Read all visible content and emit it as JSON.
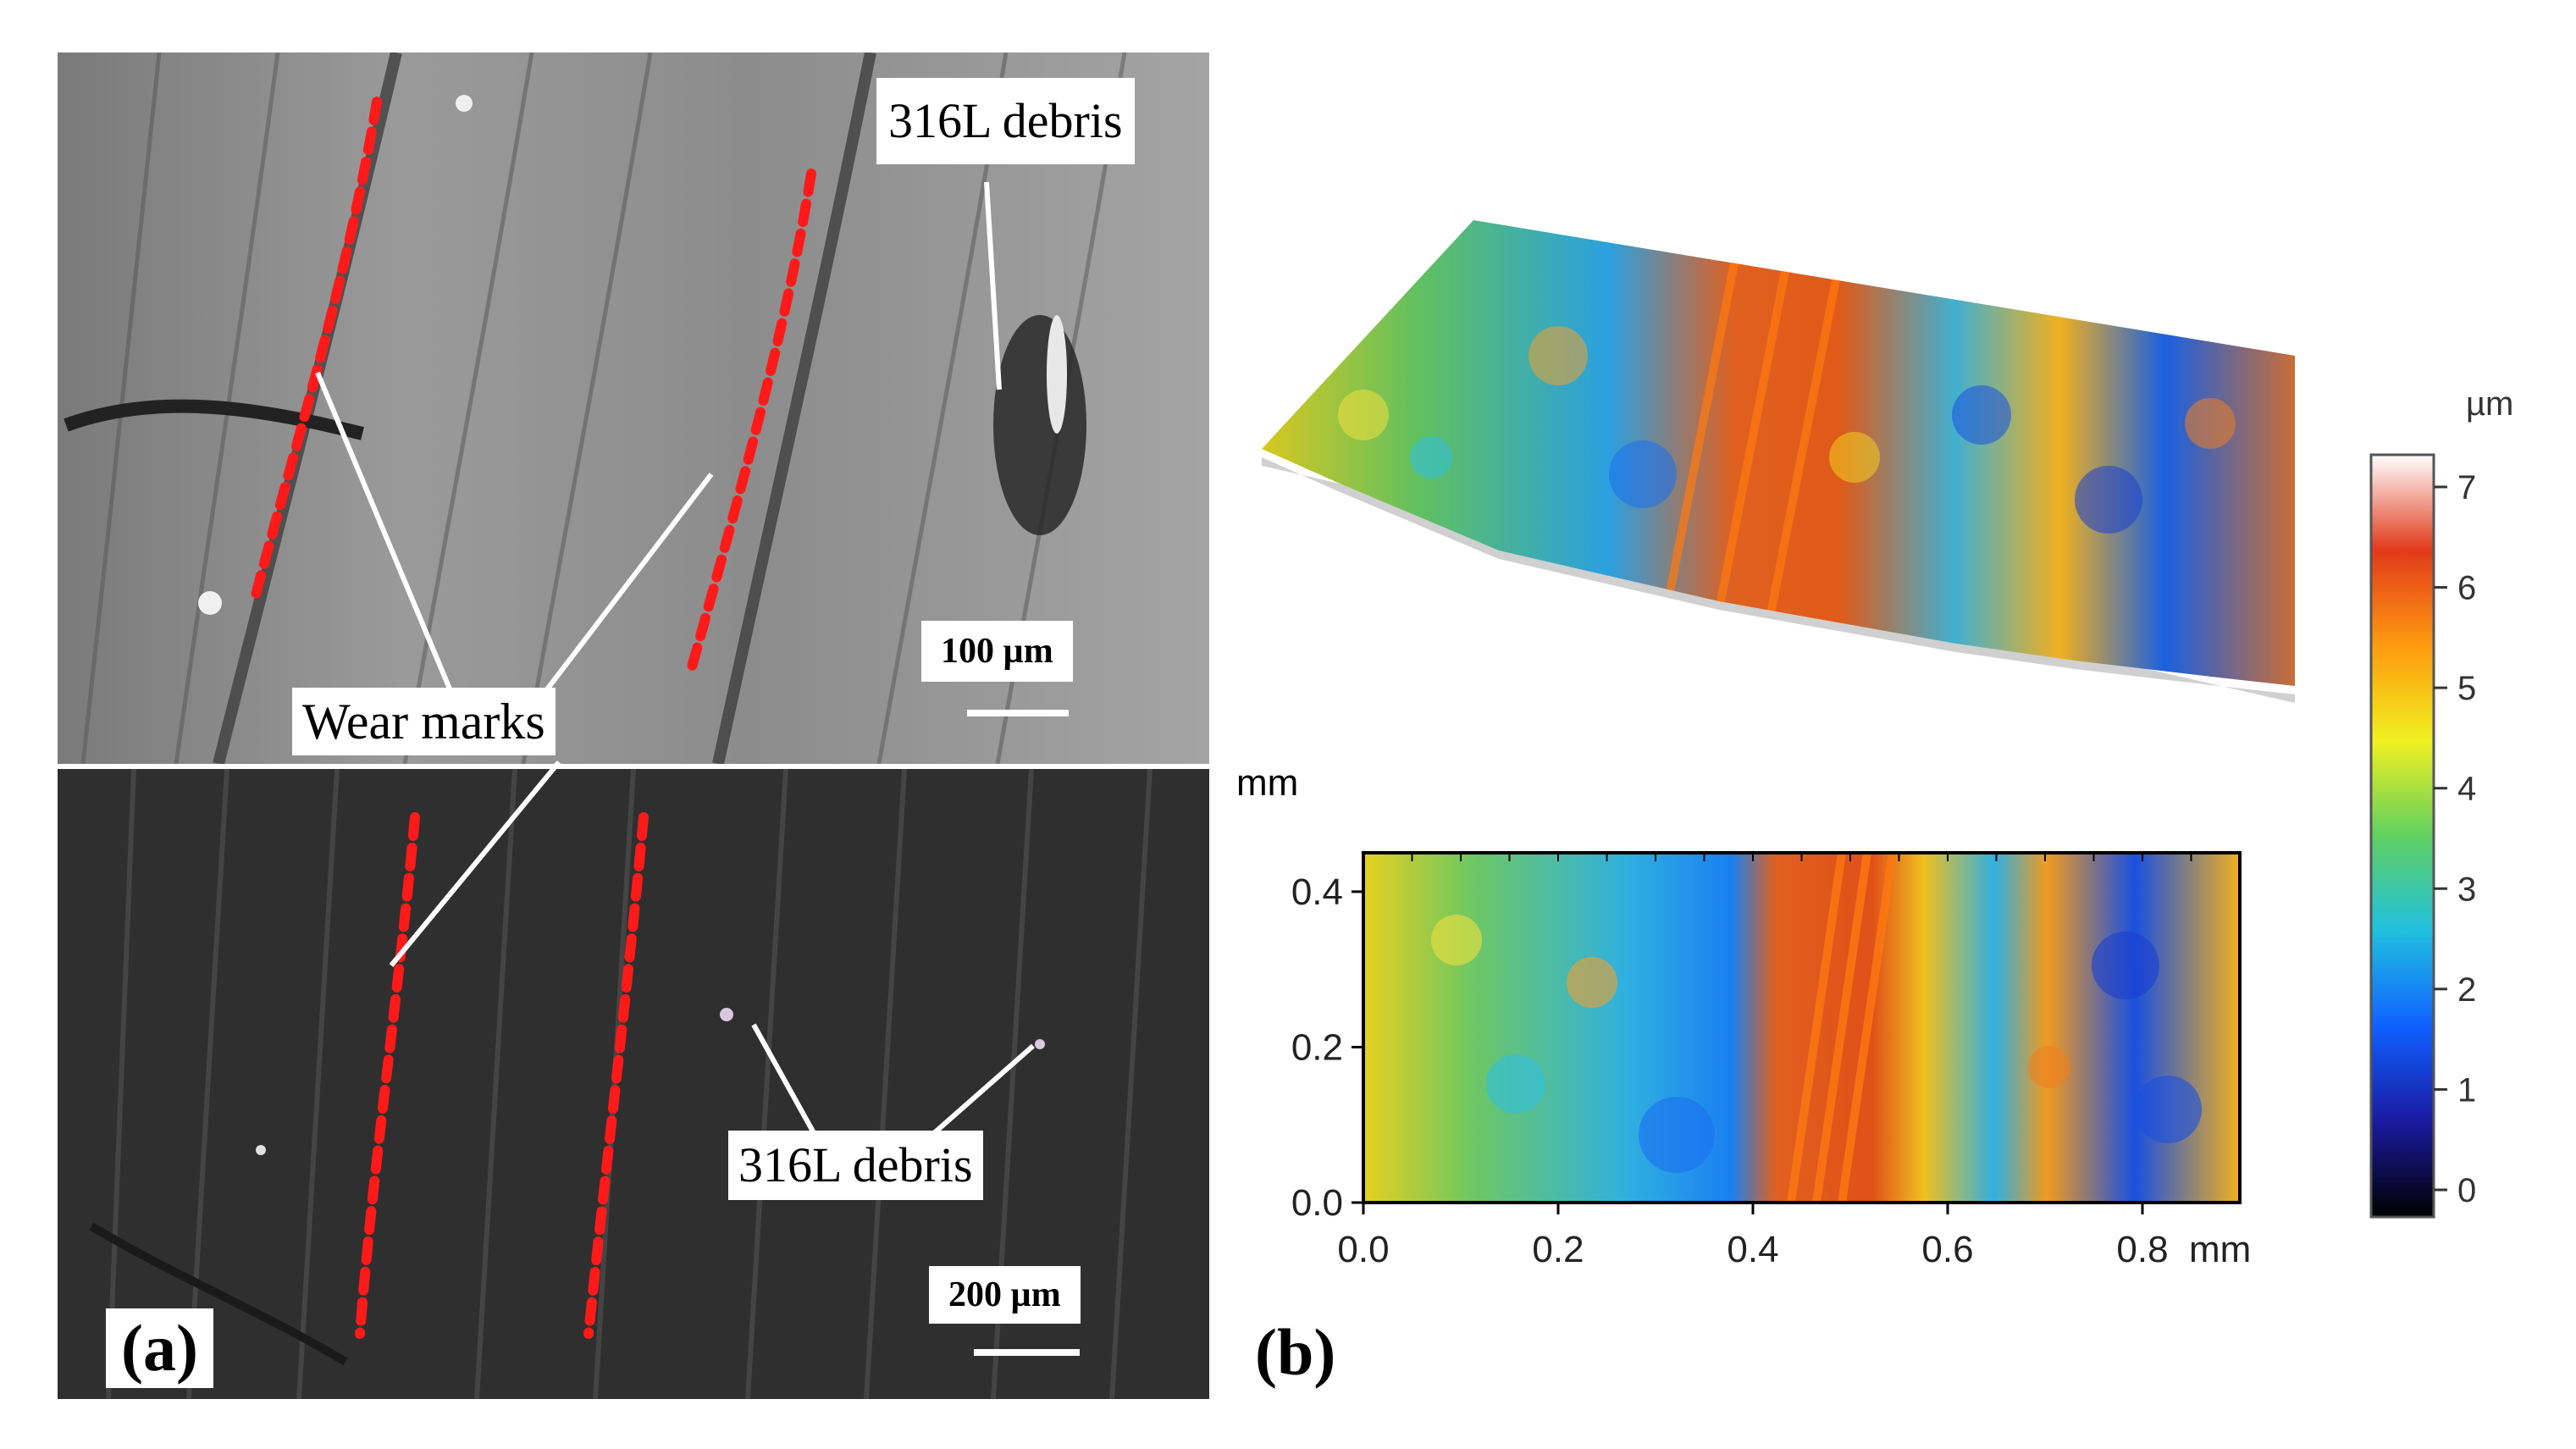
{
  "panel_a": {
    "letter": "(a)",
    "top": {
      "debris_label": "316L debris",
      "scale_label": "100 µm"
    },
    "wear_label": "Wear marks",
    "bottom": {
      "debris_label": "316L debris",
      "scale_label": "200 µm"
    }
  },
  "panel_b": {
    "letter": "(b)",
    "colorbar": {
      "unit": "µm",
      "ticks": [
        "7",
        "6",
        "5",
        "4",
        "3",
        "2",
        "1",
        "0"
      ],
      "colors": [
        "#000000",
        "#1a1aa0",
        "#1060ff",
        "#20c0e0",
        "#60d060",
        "#f0f020",
        "#ff9a10",
        "#e03a1a",
        "#ffffff"
      ]
    },
    "map": {
      "y_unit": "mm",
      "x_unit": "mm",
      "y_ticks": [
        "0.4",
        "0.2",
        "0.0"
      ],
      "x_ticks": [
        "0.0",
        "0.2",
        "0.4",
        "0.6",
        "0.8"
      ]
    }
  },
  "colors": {
    "wear_dash": "#ff1a1a"
  }
}
